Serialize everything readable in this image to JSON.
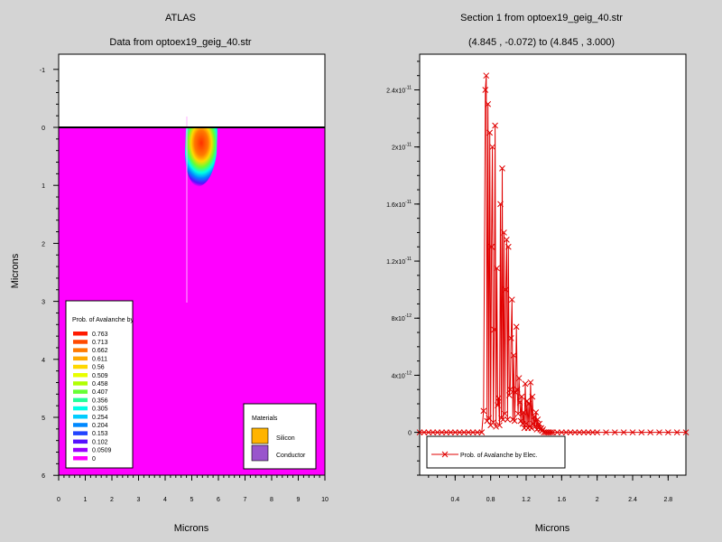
{
  "left_panel": {
    "program": "ATLAS",
    "title": "Data from optoex19_geig_40.str",
    "xlabel": "Microns",
    "ylabel": "Microns",
    "x_ticks": [
      "0",
      "1",
      "2",
      "3",
      "4",
      "5",
      "6",
      "7",
      "8",
      "9",
      "10"
    ],
    "y_ticks": [
      "-1",
      "0",
      "1",
      "2",
      "3",
      "4",
      "5",
      "6"
    ],
    "legend_title": "Prob. of Avalanche by",
    "legend_values": [
      "0.763",
      "0.713",
      "0.662",
      "0.611",
      "0.56",
      "0.509",
      "0.458",
      "0.407",
      "0.356",
      "0.305",
      "0.254",
      "0.204",
      "0.153",
      "0.102",
      "0.0509",
      "0"
    ],
    "legend_colors": [
      "#ff1a00",
      "#ff4a00",
      "#ff7a00",
      "#ffaa00",
      "#ffd800",
      "#e8ff00",
      "#b0ff00",
      "#66ff33",
      "#22ff99",
      "#00ffe6",
      "#00ccff",
      "#0088ff",
      "#2244ff",
      "#5511ff",
      "#9900ff",
      "#ff00ff"
    ],
    "materials_title": "Materials",
    "materials": [
      {
        "name": "Silicon",
        "color": "#ffb400"
      },
      {
        "name": "Conductor",
        "color": "#9955cc"
      }
    ],
    "bulk_color": "#ff00ff"
  },
  "chart_data": {
    "type": "line",
    "title": "Section 1 from optoex19_geig_40.str",
    "subtitle": "(4.845 , -0.072) to (4.845 , 3.000)",
    "xlabel": "Microns",
    "ylabel": "",
    "xlim": [
      0,
      3.0
    ],
    "ylim": [
      -3e-12,
      2.65e-11
    ],
    "x_ticks": [
      0.4,
      0.8,
      1.2,
      1.6,
      2.0,
      2.4,
      2.8
    ],
    "x_tick_labels": [
      "0.4",
      "0.8",
      "1.2",
      "1.6",
      "2",
      "2.4",
      "2.8"
    ],
    "y_ticks": [
      0,
      4e-12,
      8e-12,
      1.2e-11,
      1.6e-11,
      2e-11,
      2.4e-11
    ],
    "y_tick_mantissa": [
      "0",
      "4x10",
      "8x10",
      "1.2x10",
      "1.6x10",
      "2x10",
      "2.4x10"
    ],
    "y_tick_exponent": [
      "",
      "-12",
      "-12",
      "-11",
      "-11",
      "-11",
      "-11"
    ],
    "series": [
      {
        "name": "Prob. of Avalanche by Elec.",
        "color": "#e00000",
        "x": [
          0.0,
          0.05,
          0.1,
          0.15,
          0.2,
          0.25,
          0.3,
          0.35,
          0.4,
          0.45,
          0.5,
          0.55,
          0.6,
          0.65,
          0.7,
          0.72,
          0.74,
          0.75,
          0.76,
          0.77,
          0.78,
          0.79,
          0.8,
          0.81,
          0.82,
          0.83,
          0.84,
          0.85,
          0.86,
          0.87,
          0.88,
          0.89,
          0.9,
          0.91,
          0.92,
          0.93,
          0.94,
          0.95,
          0.96,
          0.97,
          0.98,
          0.99,
          1.0,
          1.01,
          1.02,
          1.03,
          1.04,
          1.05,
          1.06,
          1.07,
          1.08,
          1.09,
          1.1,
          1.11,
          1.12,
          1.13,
          1.14,
          1.15,
          1.16,
          1.17,
          1.18,
          1.19,
          1.2,
          1.21,
          1.22,
          1.23,
          1.24,
          1.25,
          1.26,
          1.27,
          1.28,
          1.29,
          1.3,
          1.31,
          1.32,
          1.33,
          1.34,
          1.35,
          1.36,
          1.37,
          1.38,
          1.39,
          1.4,
          1.42,
          1.44,
          1.46,
          1.48,
          1.5,
          1.55,
          1.6,
          1.65,
          1.7,
          1.75,
          1.8,
          1.85,
          1.9,
          1.95,
          2.0,
          2.1,
          2.2,
          2.3,
          2.4,
          2.5,
          2.6,
          2.7,
          2.8,
          2.9,
          3.0
        ],
        "y": [
          0,
          0,
          0,
          0,
          0,
          0,
          0,
          0,
          0,
          0,
          0,
          0,
          0,
          0,
          0,
          1.5e-12,
          2.4e-11,
          2.5e-11,
          8e-13,
          2.3e-11,
          1e-12,
          2.1e-11,
          5e-13,
          1.3e-11,
          2e-11,
          7e-13,
          7.2e-12,
          2.15e-11,
          4e-13,
          1.15e-11,
          1.9e-12,
          2.4e-12,
          5e-13,
          1.6e-11,
          1e-12,
          1.85e-11,
          9e-13,
          1.4e-11,
          1.3e-12,
          1e-11,
          1.35e-11,
          9e-13,
          1.3e-11,
          2.6e-12,
          3e-12,
          6.6e-12,
          9.3e-12,
          9e-13,
          5.4e-12,
          8e-13,
          2.8e-12,
          7.4e-12,
          3e-12,
          1.3e-12,
          3.8e-12,
          2.1e-12,
          8e-13,
          2.5e-12,
          6e-13,
          1.4e-12,
          3e-13,
          3.4e-12,
          6e-13,
          2.2e-12,
          3e-13,
          2e-12,
          4e-13,
          3.5e-12,
          3e-13,
          2.5e-12,
          6e-13,
          1.1e-12,
          4e-13,
          1.4e-12,
          2e-13,
          9e-13,
          3e-13,
          6e-13,
          2e-13,
          3e-13,
          1e-13,
          2e-13,
          0,
          0,
          0,
          0,
          0,
          0,
          0,
          0,
          0,
          0,
          0,
          0,
          0,
          0,
          0,
          0,
          0,
          0,
          0,
          0,
          0,
          0,
          0,
          0,
          0,
          0
        ]
      }
    ],
    "legend": "bottom-left",
    "grid": false
  }
}
